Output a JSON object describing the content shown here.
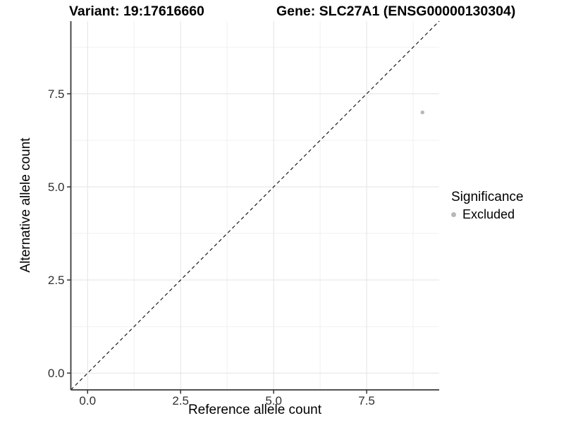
{
  "figure": {
    "title_variant": "Variant: 19:17616660",
    "title_gene": "Gene: SLC27A1 (ENSG00000130304)"
  },
  "chart_data": {
    "type": "scatter",
    "titles": [
      "Variant: 19:17616660",
      "Gene: SLC27A1 (ENSG00000130304)"
    ],
    "xlabel": "Reference allele count",
    "ylabel": "Alternative allele count",
    "xlim": [
      -0.45,
      9.45
    ],
    "ylim": [
      -0.45,
      9.45
    ],
    "x_major_ticks": [
      0,
      2.5,
      5,
      7.5
    ],
    "x_tick_labels": [
      "0.0",
      "2.5",
      "5.0",
      "7.5"
    ],
    "y_major_ticks": [
      0,
      2.5,
      5,
      7.5
    ],
    "y_tick_labels": [
      "0.0",
      "2.5",
      "5.0",
      "7.5"
    ],
    "x_minor_ticks": [
      1.25,
      3.75,
      6.25,
      8.75
    ],
    "y_minor_ticks": [
      1.25,
      3.75,
      6.25,
      8.75
    ],
    "grid": "major+minor",
    "reference_line": {
      "kind": "identity y=x",
      "style": "dashed",
      "color": "#1a1a1a"
    },
    "series": [
      {
        "name": "Excluded",
        "color": "#b8b8b8",
        "points": [
          [
            9,
            7
          ]
        ]
      }
    ],
    "legend": {
      "title": "Significance",
      "position": "right",
      "items": [
        {
          "label": "Excluded",
          "color": "#b8b8b8"
        }
      ]
    },
    "colors": {
      "grid_major": "#e3e3e3",
      "grid_minor": "#f0f0f0",
      "axis_line": "#3a3a3a",
      "tick_mark": "#333333",
      "tick_text": "#303030"
    }
  }
}
